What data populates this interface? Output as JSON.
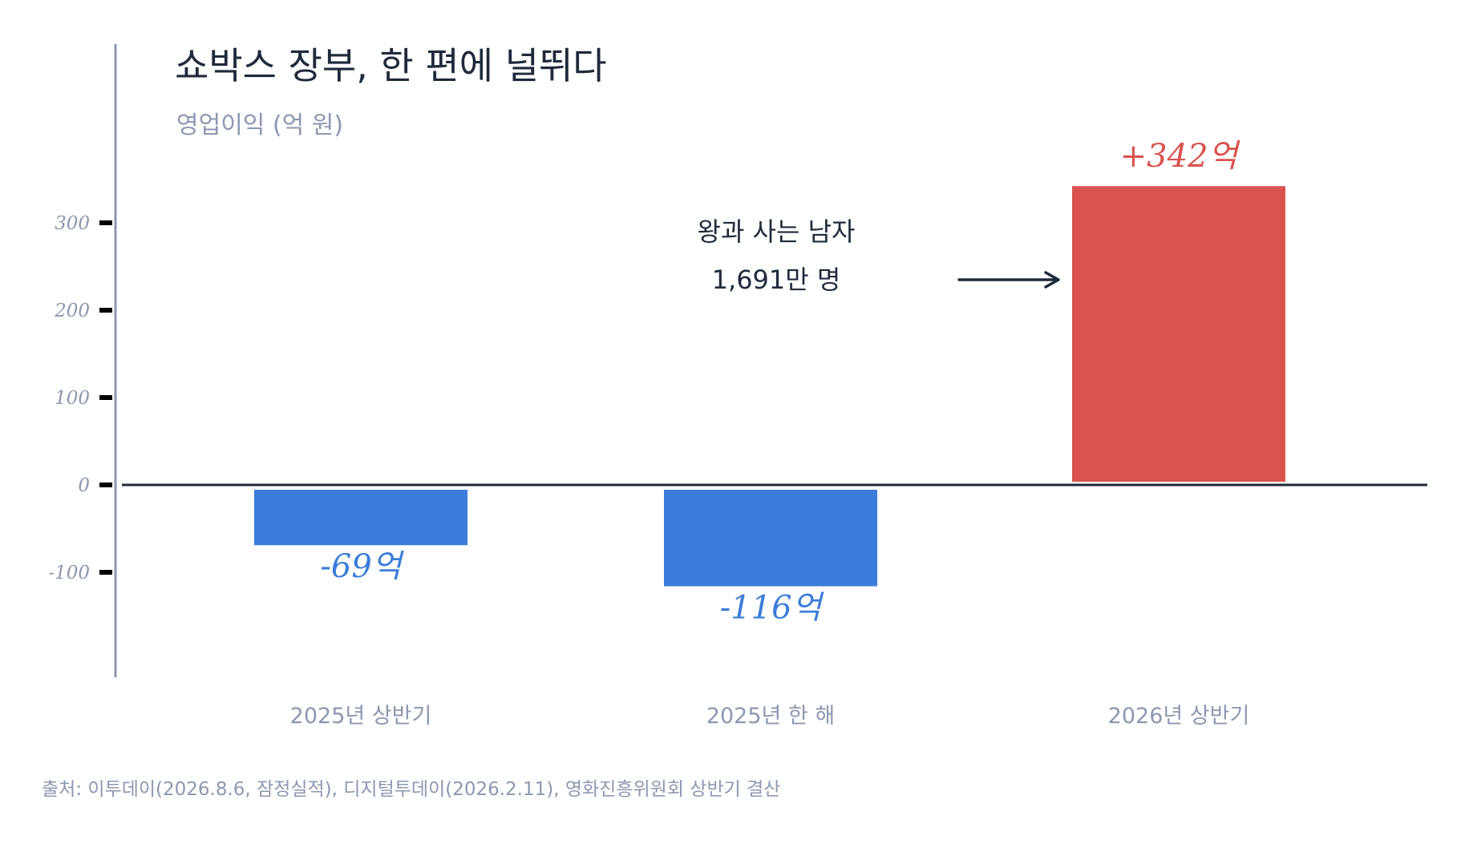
{
  "chart_data": {
    "type": "bar",
    "title": "쇼박스 장부, 한 편에 널뛰다",
    "subtitle": "영업이익 (억 원)",
    "categories": [
      "2025년 상반기",
      "2025년 한 해",
      "2026년 상반기"
    ],
    "values": [
      -69,
      -116,
      342
    ],
    "data_labels": [
      "-69억",
      "-116억",
      "+342억"
    ],
    "bar_colors": [
      "#3b7dd8",
      "#3b7dd8",
      "#d9534f"
    ],
    "label_colors": [
      "#3b7dd8",
      "#3b7dd8",
      "#d9534f"
    ],
    "ylim": [
      -215,
      500
    ],
    "yticks": [
      300,
      200,
      100,
      0,
      -100
    ],
    "ytick_labels": [
      "300",
      "200",
      "100",
      "0",
      "-100"
    ],
    "grid": false,
    "annotation": {
      "lines": [
        "왕과 사는 남자",
        "1,691만 명"
      ],
      "points_to": "2026년 상반기"
    },
    "source": "출처: 이투데이(2026.8.6, 잠정실적), 디지털투데이(2026.2.11), 영화진흥위원회 상반기 결산"
  },
  "colors": {
    "ink": "#1f2a3a",
    "muted": "#8d97b0",
    "negative": "#3b7dd8",
    "positive": "#d9534f"
  }
}
